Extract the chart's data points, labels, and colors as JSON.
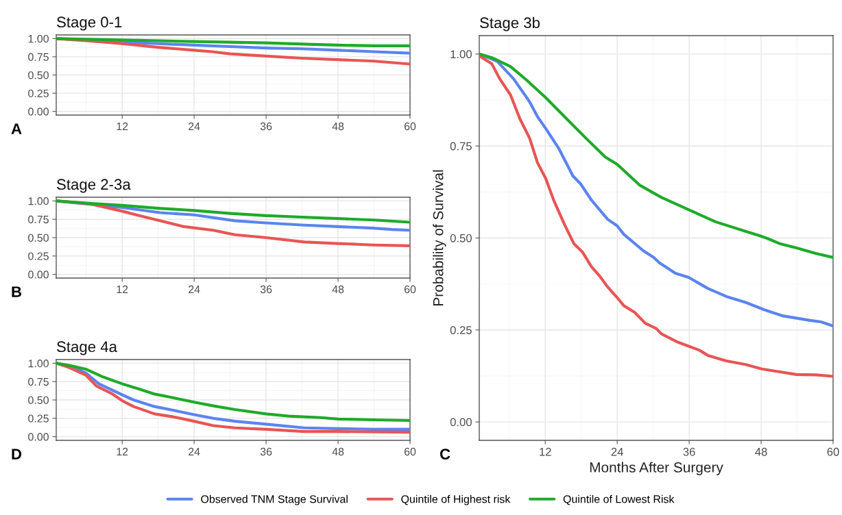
{
  "chart_data": [
    {
      "type": "line",
      "title": "Stage 0-1",
      "annotations": [
        "A"
      ],
      "xlim": [
        1,
        60
      ],
      "xticks": [
        12,
        24,
        36,
        48,
        60
      ],
      "ylim": [
        -0.05,
        1.05
      ],
      "yticks": [
        {
          "value": 0,
          "label": "0.00"
        },
        {
          "value": 0.25,
          "label": "0.25"
        },
        {
          "value": 0.5,
          "label": "0.50"
        },
        {
          "value": 0.75,
          "label": "0.75"
        },
        {
          "value": 1,
          "label": "1.00"
        }
      ],
      "grid": true,
      "legend": false,
      "series": [
        {
          "color": "#5b84f0",
          "x": [
            1,
            6,
            12,
            18,
            24,
            30,
            36,
            42,
            48,
            54,
            60
          ],
          "values": [
            1.0,
            0.98,
            0.95,
            0.93,
            0.91,
            0.89,
            0.87,
            0.86,
            0.84,
            0.82,
            0.8
          ]
        },
        {
          "color": "#e85555",
          "x": [
            1,
            6,
            12,
            18,
            24,
            27,
            30,
            36,
            42,
            48,
            54,
            60
          ],
          "values": [
            1.0,
            0.97,
            0.93,
            0.88,
            0.84,
            0.82,
            0.79,
            0.76,
            0.73,
            0.71,
            0.69,
            0.65
          ]
        },
        {
          "color": "#1faa2a",
          "x": [
            1,
            12,
            24,
            36,
            44,
            48,
            54,
            60
          ],
          "values": [
            1.0,
            0.98,
            0.96,
            0.94,
            0.92,
            0.91,
            0.9,
            0.9
          ]
        }
      ]
    },
    {
      "type": "line",
      "title": "Stage 2-3a",
      "annotations": [
        "B"
      ],
      "xlim": [
        1,
        60
      ],
      "xticks": [
        12,
        24,
        36,
        48,
        60
      ],
      "ylim": [
        -0.05,
        1.05
      ],
      "yticks": [
        {
          "value": 0,
          "label": "0.00"
        },
        {
          "value": 0.25,
          "label": "0.25"
        },
        {
          "value": 0.5,
          "label": "0.50"
        },
        {
          "value": 0.75,
          "label": "0.75"
        },
        {
          "value": 1,
          "label": "1.00"
        }
      ],
      "grid": true,
      "legend": false,
      "series": [
        {
          "color": "#5b84f0",
          "x": [
            1,
            6,
            12,
            18.3,
            24,
            30.8,
            36,
            42.4,
            48,
            53.9,
            57,
            60
          ],
          "values": [
            1.0,
            0.96,
            0.91,
            0.84,
            0.81,
            0.73,
            0.7,
            0.67,
            0.65,
            0.63,
            0.61,
            0.6
          ]
        },
        {
          "color": "#e85555",
          "x": [
            1,
            6.7,
            12,
            14.8,
            18.3,
            22.3,
            27.2,
            30.8,
            36,
            42.4,
            48,
            53.9,
            60
          ],
          "values": [
            1.0,
            0.96,
            0.86,
            0.8,
            0.73,
            0.65,
            0.6,
            0.54,
            0.5,
            0.44,
            0.42,
            0.4,
            0.39
          ]
        },
        {
          "color": "#1faa2a",
          "x": [
            1,
            6,
            12,
            18,
            24,
            30,
            36,
            42,
            48,
            54,
            60
          ],
          "values": [
            1.0,
            0.97,
            0.94,
            0.9,
            0.87,
            0.83,
            0.8,
            0.78,
            0.76,
            0.74,
            0.71
          ]
        }
      ]
    },
    {
      "type": "line",
      "title": "Stage 4a",
      "annotations": [
        "D"
      ],
      "xlim": [
        1,
        60
      ],
      "xticks": [
        12,
        24,
        36,
        48,
        60
      ],
      "ylim": [
        -0.05,
        1.05
      ],
      "yticks": [
        {
          "value": 0,
          "label": "0.00"
        },
        {
          "value": 0.25,
          "label": "0.25"
        },
        {
          "value": 0.5,
          "label": "0.50"
        },
        {
          "value": 0.75,
          "label": "0.75"
        },
        {
          "value": 1,
          "label": "1.00"
        }
      ],
      "grid": true,
      "legend": false,
      "series": [
        {
          "color": "#5b84f0",
          "x": [
            1,
            3.2,
            5.9,
            8.1,
            12,
            13.9,
            17.4,
            20.5,
            24,
            27.2,
            30.8,
            36,
            42.4,
            48,
            53.9,
            60
          ],
          "values": [
            1.0,
            0.96,
            0.87,
            0.72,
            0.57,
            0.5,
            0.41,
            0.36,
            0.3,
            0.25,
            0.21,
            0.17,
            0.12,
            0.11,
            0.1,
            0.1
          ]
        },
        {
          "color": "#e85555",
          "x": [
            1,
            3.2,
            5.9,
            7.7,
            10.4,
            12,
            13.9,
            17.4,
            20.5,
            24,
            27.2,
            30.8,
            36,
            42.4,
            48,
            60
          ],
          "values": [
            1.0,
            0.94,
            0.84,
            0.69,
            0.58,
            0.49,
            0.41,
            0.31,
            0.27,
            0.21,
            0.15,
            0.12,
            0.1,
            0.07,
            0.07,
            0.06
          ]
        },
        {
          "color": "#1faa2a",
          "x": [
            1,
            3.2,
            5.9,
            8.6,
            12,
            14.8,
            17.4,
            20.5,
            24,
            27.2,
            30.8,
            36,
            39.8,
            45.1,
            48,
            53.9,
            60
          ],
          "values": [
            1.0,
            0.97,
            0.92,
            0.82,
            0.72,
            0.65,
            0.58,
            0.53,
            0.47,
            0.42,
            0.37,
            0.31,
            0.28,
            0.26,
            0.24,
            0.23,
            0.22
          ]
        }
      ]
    },
    {
      "type": "line",
      "title": "Stage 3b",
      "xlabel": "Months After Surgery",
      "ylabel": "Probability of Survival",
      "annotations": [
        "C"
      ],
      "xlim": [
        1,
        60
      ],
      "xticks": [
        12,
        24,
        36,
        48,
        60
      ],
      "ylim": [
        -0.05,
        1.05
      ],
      "yticks": [
        {
          "value": 0,
          "label": "0.00"
        },
        {
          "value": 0.25,
          "label": "0.25"
        },
        {
          "value": 0.5,
          "label": "0.50"
        },
        {
          "value": 0.75,
          "label": "0.75"
        },
        {
          "value": 1,
          "label": "1.00"
        }
      ],
      "grid": true,
      "legend": "bottom",
      "series": [
        {
          "name": "Observed TNM Stage Survival",
          "color": "#5b84f0",
          "x": [
            1,
            4,
            6.7,
            9.4,
            10.7,
            12.1,
            14.3,
            16.6,
            17.9,
            19.7,
            22.4,
            24,
            25.1,
            28.3,
            30.1,
            31,
            33.7,
            35.9,
            39.1,
            42.2,
            45.4,
            48.5,
            51.7,
            56.2,
            58,
            60
          ],
          "values": [
            1.0,
            0.98,
            0.933,
            0.87,
            0.83,
            0.797,
            0.742,
            0.669,
            0.647,
            0.603,
            0.551,
            0.533,
            0.51,
            0.466,
            0.447,
            0.433,
            0.404,
            0.393,
            0.363,
            0.341,
            0.325,
            0.305,
            0.288,
            0.276,
            0.272,
            0.261
          ]
        },
        {
          "name": "Quintile of Highest risk",
          "color": "#e85555",
          "x": [
            1,
            3.1,
            4.4,
            6.2,
            7.8,
            9.4,
            10.7,
            12.1,
            13.4,
            15.2,
            16.8,
            18.2,
            19.7,
            21.1,
            22.4,
            24,
            25.1,
            26.9,
            28.7,
            30.5,
            31.4,
            34.1,
            35.9,
            37.7,
            39.1,
            42.2,
            45.4,
            48.1,
            50.8,
            53.9,
            57.1,
            60
          ],
          "values": [
            0.995,
            0.973,
            0.933,
            0.889,
            0.823,
            0.771,
            0.705,
            0.661,
            0.603,
            0.537,
            0.484,
            0.462,
            0.422,
            0.396,
            0.367,
            0.338,
            0.316,
            0.298,
            0.268,
            0.254,
            0.239,
            0.217,
            0.206,
            0.195,
            0.181,
            0.166,
            0.156,
            0.144,
            0.137,
            0.129,
            0.128,
            0.124
          ]
        },
        {
          "name": "Quintile of Lowest Risk",
          "color": "#1faa2a",
          "x": [
            1,
            3.1,
            6.2,
            8.9,
            12.1,
            15.2,
            18.8,
            22,
            24,
            27.8,
            31.4,
            35.9,
            40.4,
            45.4,
            47.6,
            49,
            51.2,
            53.9,
            57.1,
            60
          ],
          "values": [
            1.0,
            0.99,
            0.966,
            0.929,
            0.881,
            0.83,
            0.771,
            0.72,
            0.7,
            0.643,
            0.61,
            0.577,
            0.544,
            0.518,
            0.507,
            0.499,
            0.484,
            0.473,
            0.458,
            0.447
          ]
        }
      ]
    }
  ]
}
